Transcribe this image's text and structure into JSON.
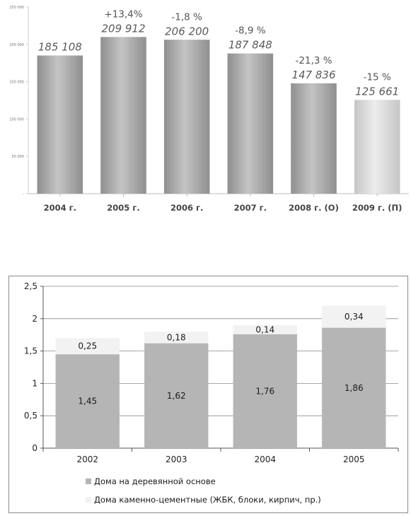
{
  "chart_data": [
    {
      "type": "bar",
      "categories": [
        "2004 г.",
        "2005 г.",
        "2006 г.",
        "2007 г.",
        "2008 г. (О)",
        "2009 г. (П)"
      ],
      "values": [
        185108,
        209912,
        206200,
        187848,
        147836,
        125661
      ],
      "value_labels": [
        "185 108",
        "209 912",
        "206 200",
        "187 848",
        "147 836",
        "125 661"
      ],
      "change_labels": [
        "",
        "+13,4%",
        "-1,8 %",
        "-8,9 %",
        "-21,3 %",
        "-15 %"
      ],
      "y_ticks": [
        0,
        50000,
        100000,
        150000,
        200000,
        250000
      ],
      "y_tick_labels": [
        "-",
        "50 000",
        "100 000",
        "150 000",
        "200 000",
        "250 000"
      ],
      "ylim": [
        0,
        250000
      ],
      "grid": false,
      "colors": {
        "bar": "#a8a8a8",
        "bar_light": "#d6d6d6",
        "text": "#555555",
        "axis": "#bbbbbb"
      }
    },
    {
      "type": "bar",
      "stacked": true,
      "categories": [
        "2002",
        "2003",
        "2004",
        "2005"
      ],
      "series": [
        {
          "name": "Дома на деревянной основе",
          "values": [
            1.45,
            1.62,
            1.76,
            1.86
          ],
          "labels": [
            "1,45",
            "1,62",
            "1,76",
            "1,86"
          ],
          "color": "#b5b5b5"
        },
        {
          "name": "Дома каменно-цементные (ЖБК, блоки, кирпич, пр.)",
          "values": [
            0.25,
            0.18,
            0.14,
            0.34
          ],
          "labels": [
            "0,25",
            "0,18",
            "0,14",
            "0,34"
          ],
          "color": "#f2f2f2"
        }
      ],
      "y_ticks": [
        0,
        0.5,
        1,
        1.5,
        2,
        2.5
      ],
      "y_tick_labels": [
        "0",
        "0,5",
        "1",
        "1,5",
        "2",
        "2,5"
      ],
      "ylim": [
        0,
        2.5
      ],
      "grid": true,
      "legend_position": "bottom"
    }
  ]
}
